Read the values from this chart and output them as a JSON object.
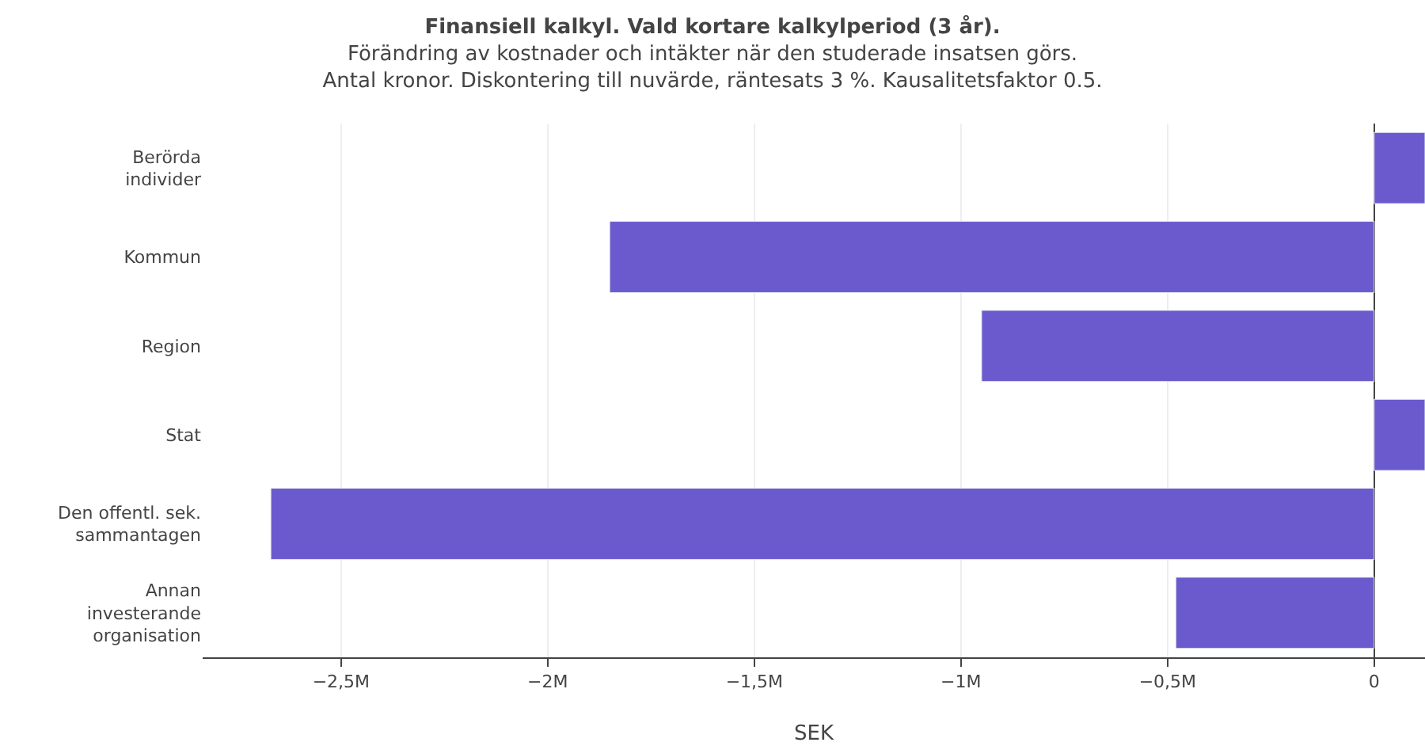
{
  "chart_data": {
    "type": "bar",
    "orientation": "horizontal",
    "title": "Finansiell kalkyl. Vald kortare kalkylperiod (3 år).",
    "subtitle": "Förändring av kostnader och intäkter när den studerade insatsen görs.\nAntal kronor. Diskontering till nuvärde, räntesats 3 %. Kausalitetsfaktor 0.5.",
    "xlabel": "SEK",
    "categories": [
      "Berörda\nindivider",
      "Kommun",
      "Region",
      "Stat",
      "Den offentl. sek.\nsammantagen",
      "Annan\ninvesterande\norganisation"
    ],
    "values": [
      123000,
      -1850000,
      -950000,
      123000,
      -2670000,
      -480000
    ],
    "color": "#6a5acd",
    "xlim": [
      -2835000,
      123000
    ],
    "xticks": [
      {
        "value": -2500000,
        "label": "−2,5M"
      },
      {
        "value": -2000000,
        "label": "−2M"
      },
      {
        "value": -1500000,
        "label": "−1,5M"
      },
      {
        "value": -1000000,
        "label": "−1M"
      },
      {
        "value": -500000,
        "label": "−0,5M"
      },
      0
    ],
    "grid": "x",
    "legend": false
  }
}
